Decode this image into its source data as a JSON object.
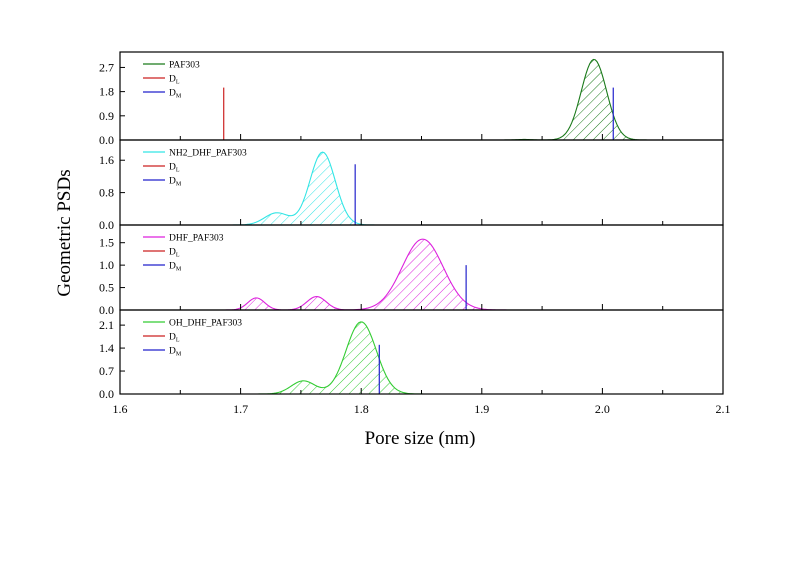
{
  "chart_data": {
    "type": "area",
    "xlabel": "Pore size (nm)",
    "ylabel": "Geometric PSDs",
    "xlim": [
      1.6,
      2.1
    ],
    "xticks": [
      "1.6",
      "1.7",
      "1.8",
      "1.9",
      "2.0",
      "2.1"
    ],
    "grid": false,
    "legend_placement": "top-left",
    "panels": [
      {
        "series_name": "PAF303",
        "color": "#1a7a1a",
        "ylim": [
          0,
          3.2
        ],
        "yticks": [
          "0.0",
          "0.9",
          "1.8",
          "2.7"
        ],
        "D_L": 1.686,
        "D_M": 2.009,
        "marker_height": 1.95,
        "peaks": [
          {
            "center": 1.993,
            "amplitude": 3.0,
            "width": 0.0105
          },
          {
            "center": 1.935,
            "amplitude": 0.02,
            "width": 0.006
          }
        ],
        "legend": [
          "PAF303",
          "D",
          "L",
          "D",
          "M"
        ]
      },
      {
        "series_name": "NH2_DHF_PAF303",
        "color": "#33e5e5",
        "ylim": [
          0,
          2.05
        ],
        "yticks": [
          "0.0",
          "0.8",
          "1.6"
        ],
        "D_L": null,
        "D_M": 1.795,
        "marker_height": 1.5,
        "peaks": [
          {
            "center": 1.768,
            "amplitude": 1.8,
            "width": 0.0105
          },
          {
            "center": 1.73,
            "amplitude": 0.3,
            "width": 0.01
          }
        ],
        "legend": [
          "NH2_DHF_PAF303",
          "D",
          "L",
          "D",
          "M"
        ]
      },
      {
        "series_name": "DHF_PAF303",
        "color": "#dd22dd",
        "ylim": [
          0,
          1.85
        ],
        "yticks": [
          "0.0",
          "0.5",
          "1.0",
          "1.5"
        ],
        "D_L": null,
        "D_M": 1.887,
        "marker_height": 1.0,
        "peaks": [
          {
            "center": 1.851,
            "amplitude": 1.58,
            "width": 0.017
          },
          {
            "center": 1.763,
            "amplitude": 0.3,
            "width": 0.008
          },
          {
            "center": 1.713,
            "amplitude": 0.27,
            "width": 0.007
          }
        ],
        "legend": [
          "DHF_PAF303",
          "D",
          "L",
          "D",
          "M"
        ]
      },
      {
        "series_name": "OH_DHF_PAF303",
        "color": "#33cc33",
        "ylim": [
          0,
          2.5
        ],
        "yticks": [
          "0.0",
          "0.7",
          "1.4",
          "2.1"
        ],
        "D_L": null,
        "D_M": 1.815,
        "marker_height": 1.5,
        "peaks": [
          {
            "center": 1.8,
            "amplitude": 2.2,
            "width": 0.0125
          },
          {
            "center": 1.752,
            "amplitude": 0.4,
            "width": 0.01
          }
        ],
        "legend": [
          "OH_DHF_PAF303",
          "D",
          "L",
          "D",
          "M"
        ]
      }
    ],
    "marker_colors": {
      "D_L": "#cc2222",
      "D_M": "#2222cc"
    }
  }
}
